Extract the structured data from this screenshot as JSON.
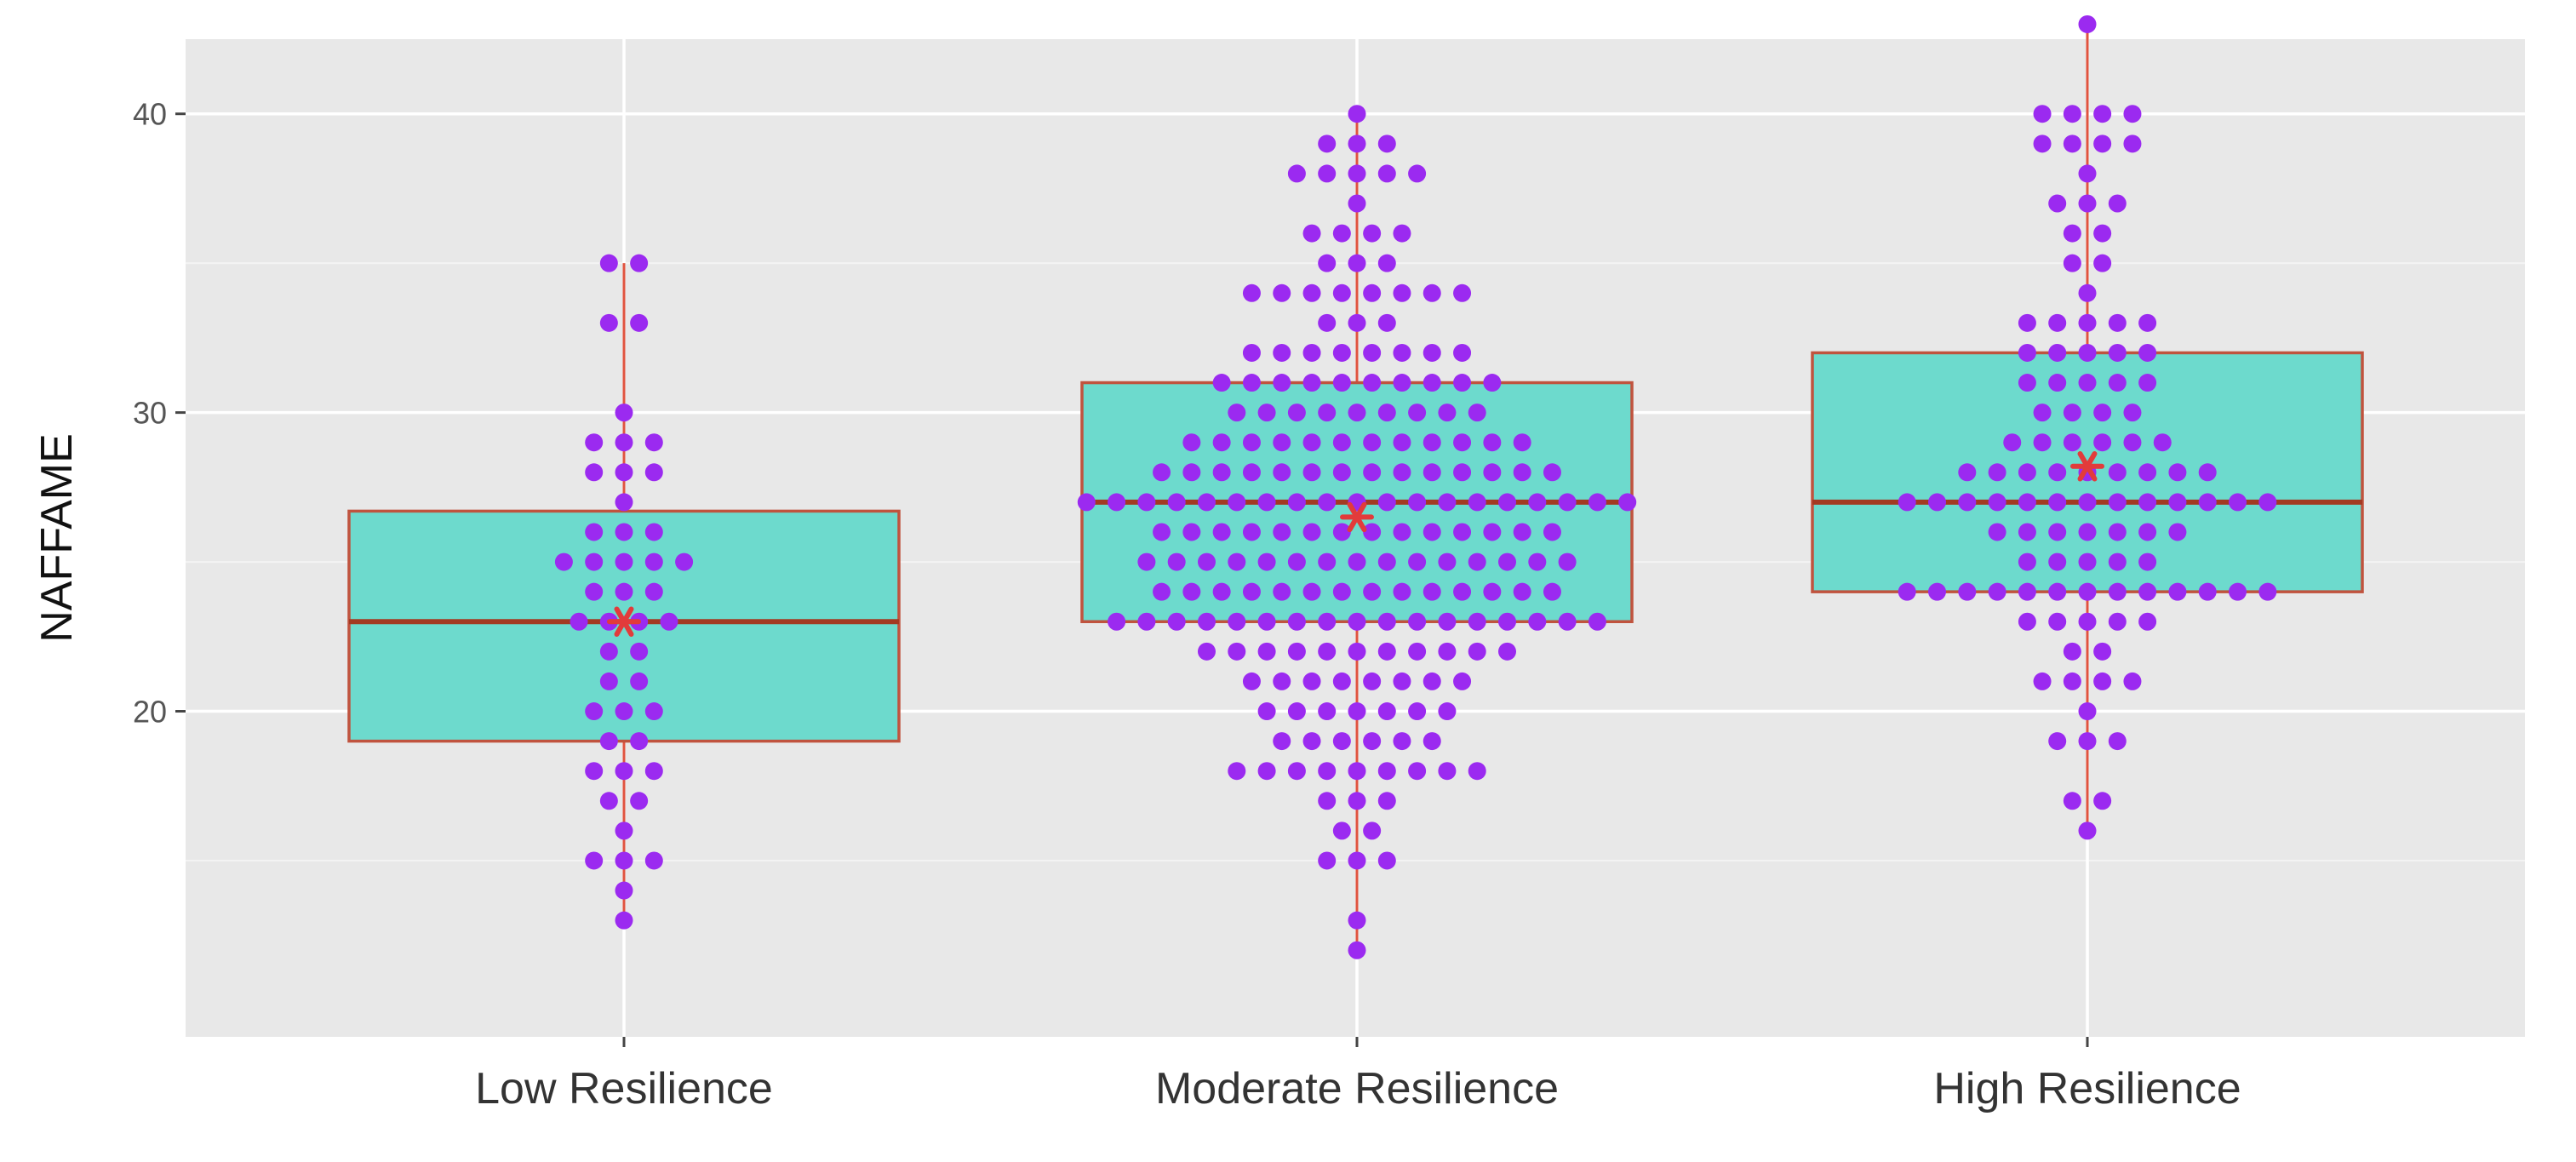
{
  "colors": {
    "panel_background": "#E8E8E8",
    "grid_major": "#FFFFFF",
    "grid_minor": "#F3F3F3",
    "box_fill": "#6DDACD",
    "box_outline": "#C0533E",
    "median_line": "#A33A22",
    "whisker": "#E0533F",
    "dot": "#9B2AF0",
    "mean_marker": "#E23B3B",
    "tick_text": "#555555",
    "axis_title_text": "#111111"
  },
  "chart_data": {
    "type": "boxplot",
    "xlabel": "",
    "ylabel": "NAFFAME",
    "categories": [
      "Low Resilience",
      "Moderate Resilience",
      "High Resilience"
    ],
    "yticks": [
      "20",
      "30",
      "40"
    ],
    "ylim": [
      9.1,
      42.5
    ],
    "grid": true,
    "boxes": [
      {
        "category": "Low Resilience",
        "whisker_low": 13,
        "q1": 19,
        "median": 23,
        "q3": 26.7,
        "whisker_high": 35,
        "mean": 23
      },
      {
        "category": "Moderate Resilience",
        "whisker_low": 12,
        "q1": 23,
        "median": 27,
        "q3": 31,
        "whisker_high": 40,
        "mean": 26.5
      },
      {
        "category": "High Resilience",
        "whisker_low": 16,
        "q1": 24,
        "median": 27,
        "q3": 32,
        "whisker_high": 43,
        "mean": 28.2
      }
    ],
    "dotplot_counts": [
      {
        "category": "Low Resilience",
        "values": [
          13,
          14,
          15,
          16,
          17,
          18,
          19,
          20,
          21,
          22,
          23,
          24,
          25,
          26,
          27,
          28,
          29,
          30,
          33,
          35
        ],
        "counts": [
          1,
          1,
          3,
          1,
          2,
          3,
          2,
          3,
          2,
          2,
          4,
          3,
          5,
          3,
          1,
          3,
          3,
          1,
          2,
          2
        ]
      },
      {
        "category": "Moderate Resilience",
        "values": [
          12,
          13,
          15,
          16,
          17,
          18,
          19,
          20,
          21,
          22,
          23,
          24,
          25,
          26,
          27,
          28,
          29,
          30,
          31,
          32,
          33,
          34,
          35,
          36,
          37,
          38,
          39,
          40
        ],
        "counts": [
          1,
          1,
          3,
          2,
          3,
          9,
          6,
          7,
          8,
          11,
          17,
          14,
          15,
          14,
          19,
          14,
          12,
          9,
          10,
          8,
          3,
          8,
          3,
          4,
          1,
          5,
          3,
          1
        ]
      },
      {
        "category": "High Resilience",
        "values": [
          16,
          17,
          19,
          20,
          21,
          22,
          23,
          24,
          25,
          26,
          27,
          28,
          29,
          30,
          31,
          32,
          33,
          34,
          35,
          36,
          37,
          38,
          39,
          40,
          43
        ],
        "counts": [
          1,
          2,
          3,
          1,
          4,
          2,
          5,
          13,
          5,
          7,
          13,
          9,
          6,
          4,
          5,
          5,
          5,
          1,
          2,
          2,
          3,
          1,
          4,
          4,
          1
        ]
      }
    ]
  }
}
